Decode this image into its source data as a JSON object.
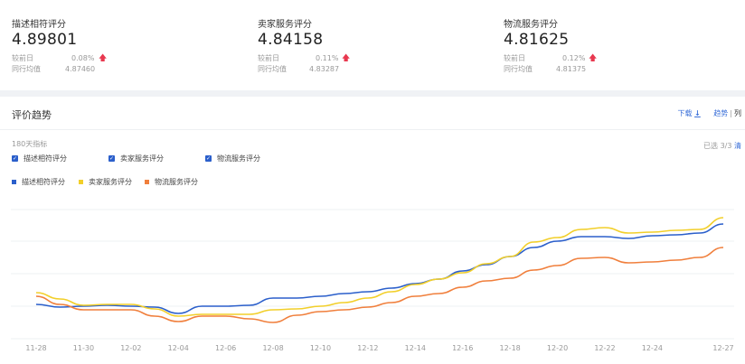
{
  "metrics": [
    {
      "title": "描述相符评分",
      "value": "4.89801",
      "compare_label": "较前日",
      "compare_value": "0.08%",
      "avg_label": "同行均值",
      "avg_value": "4.87460",
      "trend": "up"
    },
    {
      "title": "卖家服务评分",
      "value": "4.84158",
      "compare_label": "较前日",
      "compare_value": "0.11%",
      "avg_label": "同行均值",
      "avg_value": "4.83287",
      "trend": "up"
    },
    {
      "title": "物流服务评分",
      "value": "4.81625",
      "compare_label": "较前日",
      "compare_value": "0.12%",
      "avg_label": "同行均值",
      "avg_value": "4.81375",
      "trend": "up"
    }
  ],
  "trend": {
    "title": "评价趋势",
    "download_label": "下载",
    "download_icon": "↓",
    "view_trend": "趋势",
    "view_separator": "|",
    "view_list": "列",
    "range_label": "180天指标",
    "selected_text": "已选 3/3",
    "clear_label": "清",
    "checkboxes": [
      {
        "label": "描述相符评分",
        "checked": true
      },
      {
        "label": "卖家服务评分",
        "checked": true
      },
      {
        "label": "物流服务评分",
        "checked": true
      }
    ]
  },
  "colors": {
    "blue": "#2b5fcb",
    "yellow": "#f2cf2a",
    "orange": "#f07f3c",
    "up": "#e8384f"
  },
  "chart_data": {
    "type": "line",
    "title": "评价趋势",
    "xlabel": "",
    "ylabel": "",
    "grid": true,
    "legend_position": "top-left",
    "x": [
      "11-28",
      "11-29",
      "11-30",
      "12-01",
      "12-02",
      "12-03",
      "12-04",
      "12-05",
      "12-06",
      "12-07",
      "12-08",
      "12-09",
      "12-10",
      "12-11",
      "12-12",
      "12-13",
      "12-14",
      "12-15",
      "12-16",
      "12-17",
      "12-18",
      "12-19",
      "12-20",
      "12-21",
      "12-22",
      "12-23",
      "12-24",
      "12-25",
      "12-26",
      "12-27"
    ],
    "tick_labels": [
      "11-28",
      "11-30",
      "12-02",
      "12-04",
      "12-06",
      "12-08",
      "12-10",
      "12-12",
      "12-14",
      "12-16",
      "12-18",
      "12-20",
      "12-22",
      "12-24",
      "12-27"
    ],
    "series": [
      {
        "name": "描述相符评分",
        "color": "#2b5fcb",
        "values": [
          337,
          340,
          339,
          338,
          339,
          340,
          347,
          339,
          339,
          338,
          330,
          330,
          328,
          325,
          323,
          319,
          314,
          309,
          300,
          293,
          284,
          274,
          267,
          262,
          262,
          264,
          261,
          260,
          258,
          248
        ]
      },
      {
        "name": "卖家服务评分",
        "color": "#f2cf2a",
        "values": [
          324,
          331,
          338,
          337,
          337,
          342,
          350,
          348,
          348,
          348,
          343,
          342,
          339,
          335,
          330,
          323,
          315,
          309,
          302,
          292,
          284,
          268,
          263,
          254,
          252,
          258,
          257,
          255,
          254,
          241
        ]
      },
      {
        "name": "物流服务评分",
        "color": "#f07f3c",
        "values": [
          328,
          337,
          343,
          343,
          343,
          350,
          356,
          350,
          350,
          353,
          357,
          349,
          345,
          343,
          340,
          335,
          328,
          325,
          318,
          311,
          308,
          299,
          294,
          286,
          285,
          291,
          290,
          288,
          285,
          274
        ]
      }
    ],
    "y_note": "y-axis unlabeled; values are relative screen positions (lower = higher score)",
    "ylim": [
      232,
      375
    ]
  }
}
